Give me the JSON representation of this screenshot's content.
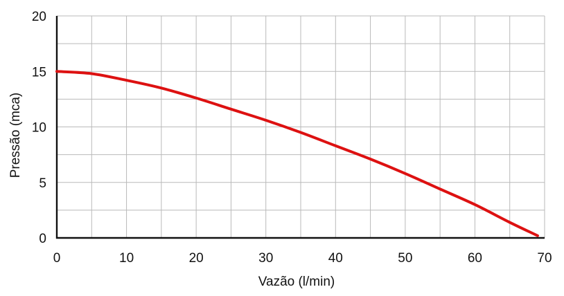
{
  "chart_data": {
    "type": "line",
    "title": "",
    "xlabel": "Vazão (l/min)",
    "ylabel": "Pressão (mca)",
    "xlim": [
      0,
      70
    ],
    "ylim": [
      0,
      20
    ],
    "x_ticks": [
      0,
      10,
      20,
      30,
      40,
      50,
      60,
      70
    ],
    "y_ticks": [
      0,
      5,
      10,
      15,
      20
    ],
    "x_tick_labels": [
      "0",
      "10",
      "20",
      "30",
      "40",
      "50",
      "60",
      "70"
    ],
    "y_tick_labels": [
      "0",
      "5",
      "10",
      "15",
      "20"
    ],
    "grid": true,
    "legend": false,
    "series": [
      {
        "color": "#dd1111",
        "x": [
          0,
          5,
          10,
          15,
          20,
          25,
          30,
          35,
          40,
          45,
          50,
          55,
          60,
          65,
          69
        ],
        "y": [
          15.0,
          14.8,
          14.2,
          13.5,
          12.6,
          11.6,
          10.6,
          9.5,
          8.3,
          7.1,
          5.8,
          4.4,
          3.0,
          1.4,
          0.2
        ]
      }
    ]
  }
}
